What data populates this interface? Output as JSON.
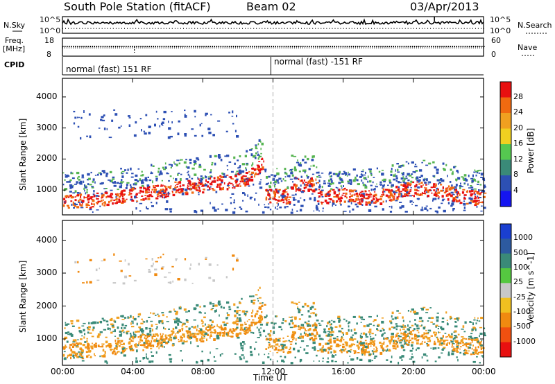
{
  "header": {
    "title": "South Pole Station (fitACF)",
    "beam": "Beam 02",
    "date": "03/Apr/2013"
  },
  "aux": {
    "nsky_label": "N.Sky",
    "nsky_ticks": [
      "10^5",
      "10^0"
    ],
    "nsearch_label": "N.Search",
    "nsearch_ticks": [
      "10^5",
      "10^0"
    ],
    "freq_label_1": "Freq.",
    "freq_label_2": "[MHz]",
    "freq_ticks": [
      "18",
      "8"
    ],
    "nave_label": "Nave",
    "nave_ticks": [
      "60",
      "0"
    ],
    "cpid_label": "CPID",
    "cpid_segments": [
      "normal (fast) 151 RF",
      "normal (fast) -151 RF"
    ]
  },
  "chart_data": [
    {
      "type": "heatmap",
      "name": "power",
      "ylabel": "Slant Range [km]",
      "yticks": [
        "1000",
        "2000",
        "3000",
        "4000"
      ],
      "ylim": [
        200,
        4600
      ],
      "x_ticks": [
        "00:00",
        "04:00",
        "08:00",
        "12:00",
        "16:00",
        "20:00",
        "00:00"
      ],
      "xlim_hours": [
        0,
        24
      ],
      "colorbar_label": "Power [dB]",
      "colorbar_ticks": [
        "4",
        "8",
        "12",
        "16",
        "20",
        "24",
        "28"
      ],
      "colorbar_colors": [
        "#1515f0",
        "#2d50b4",
        "#3a8a78",
        "#55c850",
        "#f0d020",
        "#f0a020",
        "#f06a10",
        "#e81010"
      ],
      "band_colors": {
        "low": "#2d50b4",
        "mid": "#55b450",
        "high": "#f06a10",
        "peak": "#e81010"
      }
    },
    {
      "type": "heatmap",
      "name": "velocity",
      "ylabel": "Slant Range [km]",
      "yticks": [
        "1000",
        "2000",
        "3000",
        "4000"
      ],
      "ylim": [
        200,
        4600
      ],
      "x_ticks": [
        "00:00",
        "04:00",
        "08:00",
        "12:00",
        "16:00",
        "20:00",
        "00:00"
      ],
      "xlabel": "Time UT",
      "xlim_hours": [
        0,
        24
      ],
      "colorbar_label": "Velocity [m s^-1]",
      "colorbar_ticks": [
        "1000",
        "500",
        "100",
        "25",
        "-25",
        "-100",
        "-500",
        "-1000"
      ],
      "colorbar_colors": [
        "#1a3fd0",
        "#2d5aa0",
        "#3a8a78",
        "#55c840",
        "#c8c8c8",
        "#f0c020",
        "#f08a10",
        "#f05010",
        "#e81010"
      ],
      "band_colors": {
        "low": "#f08a10",
        "mid": "#f0a020",
        "high": "#3a8a78",
        "grey": "#c8c8c8"
      }
    }
  ]
}
